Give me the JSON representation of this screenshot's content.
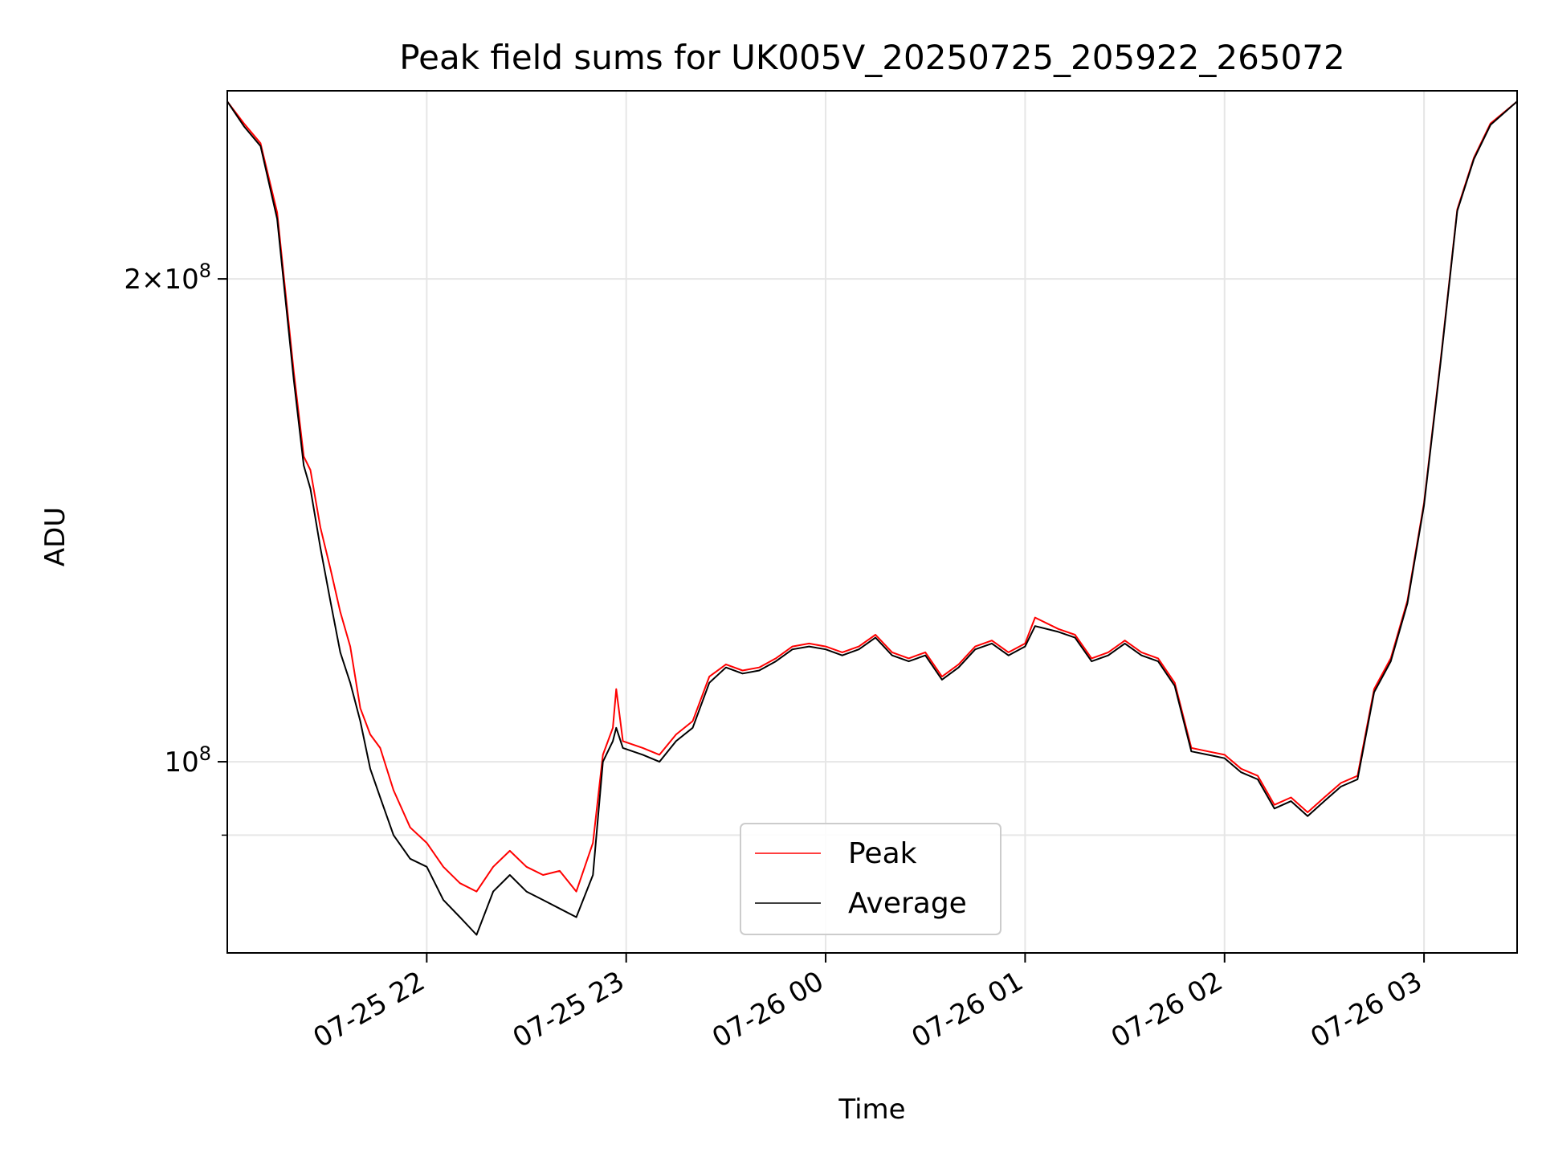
{
  "chart_data": {
    "type": "line",
    "title": "Peak field sums for UK005V_20250725_205922_265072",
    "xlabel": "Time",
    "ylabel": "ADU",
    "y_scale": "log",
    "x_range": [
      "2025-07-25 21:00",
      "2025-07-26 03:28"
    ],
    "ylim": [
      76000000,
      262000000
    ],
    "x_ticks": [
      {
        "value": "2025-07-25 22:00",
        "label": "07-25 22"
      },
      {
        "value": "2025-07-25 23:00",
        "label": "07-25 23"
      },
      {
        "value": "2025-07-26 00:00",
        "label": "07-26 00"
      },
      {
        "value": "2025-07-26 01:00",
        "label": "07-26 01"
      },
      {
        "value": "2025-07-26 02:00",
        "label": "07-26 02"
      },
      {
        "value": "2025-07-26 03:00",
        "label": "07-26 03"
      }
    ],
    "y_major_ticks": [
      {
        "value": 100000000,
        "base": "10",
        "exp": "8",
        "mant": ""
      },
      {
        "value": 200000000,
        "base": "10",
        "exp": "8",
        "mant": "2"
      }
    ],
    "y_minor_ticks": [
      90000000
    ],
    "grid": true,
    "legend_position": "lower center",
    "series": [
      {
        "name": "Peak",
        "color": "#ff0000",
        "points": [
          [
            "2025-07-25 21:00",
            258000000
          ],
          [
            "2025-07-25 21:05",
            250000000
          ],
          [
            "2025-07-25 21:10",
            243000000
          ],
          [
            "2025-07-25 21:15",
            220000000
          ],
          [
            "2025-07-25 21:20",
            175000000
          ],
          [
            "2025-07-25 21:23",
            155000000
          ],
          [
            "2025-07-25 21:25",
            152000000
          ],
          [
            "2025-07-25 21:28",
            140000000
          ],
          [
            "2025-07-25 21:31",
            132000000
          ],
          [
            "2025-07-25 21:34",
            124000000
          ],
          [
            "2025-07-25 21:37",
            118000000
          ],
          [
            "2025-07-25 21:40",
            108000000
          ],
          [
            "2025-07-25 21:43",
            104000000
          ],
          [
            "2025-07-25 21:46",
            102000000
          ],
          [
            "2025-07-25 21:50",
            96000000
          ],
          [
            "2025-07-25 21:55",
            91000000
          ],
          [
            "2025-07-25 22:00",
            89000000
          ],
          [
            "2025-07-25 22:05",
            86000000
          ],
          [
            "2025-07-25 22:10",
            84000000
          ],
          [
            "2025-07-25 22:15",
            83000000
          ],
          [
            "2025-07-25 22:20",
            86000000
          ],
          [
            "2025-07-25 22:25",
            88000000
          ],
          [
            "2025-07-25 22:30",
            86000000
          ],
          [
            "2025-07-25 22:35",
            85000000
          ],
          [
            "2025-07-25 22:40",
            85500000
          ],
          [
            "2025-07-25 22:45",
            83000000
          ],
          [
            "2025-07-25 22:50",
            89000000
          ],
          [
            "2025-07-25 22:53",
            101000000
          ],
          [
            "2025-07-25 22:56",
            105000000
          ],
          [
            "2025-07-25 22:57",
            111000000
          ],
          [
            "2025-07-25 22:59",
            103000000
          ],
          [
            "2025-07-25 23:05",
            102000000
          ],
          [
            "2025-07-25 23:10",
            101000000
          ],
          [
            "2025-07-25 23:15",
            104000000
          ],
          [
            "2025-07-25 23:20",
            106000000
          ],
          [
            "2025-07-25 23:25",
            113000000
          ],
          [
            "2025-07-25 23:30",
            115000000
          ],
          [
            "2025-07-25 23:35",
            114000000
          ],
          [
            "2025-07-25 23:40",
            114500000
          ],
          [
            "2025-07-25 23:45",
            116000000
          ],
          [
            "2025-07-25 23:50",
            118000000
          ],
          [
            "2025-07-25 23:55",
            118500000
          ],
          [
            "2025-07-26 00:00",
            118000000
          ],
          [
            "2025-07-26 00:05",
            117000000
          ],
          [
            "2025-07-26 00:10",
            118000000
          ],
          [
            "2025-07-26 00:15",
            120000000
          ],
          [
            "2025-07-26 00:20",
            117000000
          ],
          [
            "2025-07-26 00:25",
            116000000
          ],
          [
            "2025-07-26 00:30",
            117000000
          ],
          [
            "2025-07-26 00:35",
            113000000
          ],
          [
            "2025-07-26 00:40",
            115000000
          ],
          [
            "2025-07-26 00:45",
            118000000
          ],
          [
            "2025-07-26 00:50",
            119000000
          ],
          [
            "2025-07-26 00:55",
            117000000
          ],
          [
            "2025-07-26 01:00",
            118500000
          ],
          [
            "2025-07-26 01:03",
            123000000
          ],
          [
            "2025-07-26 01:10",
            121000000
          ],
          [
            "2025-07-26 01:15",
            120000000
          ],
          [
            "2025-07-26 01:20",
            116000000
          ],
          [
            "2025-07-26 01:25",
            117000000
          ],
          [
            "2025-07-26 01:30",
            119000000
          ],
          [
            "2025-07-26 01:35",
            117000000
          ],
          [
            "2025-07-26 01:40",
            116000000
          ],
          [
            "2025-07-26 01:45",
            112000000
          ],
          [
            "2025-07-26 01:50",
            102000000
          ],
          [
            "2025-07-26 01:55",
            101500000
          ],
          [
            "2025-07-26 02:00",
            101000000
          ],
          [
            "2025-07-26 02:05",
            99000000
          ],
          [
            "2025-07-26 02:10",
            98000000
          ],
          [
            "2025-07-26 02:15",
            94000000
          ],
          [
            "2025-07-26 02:20",
            95000000
          ],
          [
            "2025-07-26 02:25",
            93000000
          ],
          [
            "2025-07-26 02:30",
            95000000
          ],
          [
            "2025-07-26 02:35",
            97000000
          ],
          [
            "2025-07-26 02:40",
            98000000
          ],
          [
            "2025-07-26 02:45",
            111000000
          ],
          [
            "2025-07-26 02:50",
            116000000
          ],
          [
            "2025-07-26 02:55",
            126000000
          ],
          [
            "2025-07-26 03:00",
            145000000
          ],
          [
            "2025-07-26 03:05",
            178000000
          ],
          [
            "2025-07-26 03:10",
            221000000
          ],
          [
            "2025-07-26 03:15",
            238000000
          ],
          [
            "2025-07-26 03:20",
            250000000
          ],
          [
            "2025-07-26 03:28",
            258000000
          ]
        ]
      },
      {
        "name": "Average",
        "color": "#000000",
        "points": [
          [
            "2025-07-25 21:00",
            258000000
          ],
          [
            "2025-07-25 21:05",
            249000000
          ],
          [
            "2025-07-25 21:10",
            242000000
          ],
          [
            "2025-07-25 21:15",
            218000000
          ],
          [
            "2025-07-25 21:20",
            173000000
          ],
          [
            "2025-07-25 21:23",
            153000000
          ],
          [
            "2025-07-25 21:25",
            148000000
          ],
          [
            "2025-07-25 21:28",
            136000000
          ],
          [
            "2025-07-25 21:31",
            126000000
          ],
          [
            "2025-07-25 21:34",
            117000000
          ],
          [
            "2025-07-25 21:37",
            112000000
          ],
          [
            "2025-07-25 21:40",
            106000000
          ],
          [
            "2025-07-25 21:43",
            99000000
          ],
          [
            "2025-07-25 21:46",
            95000000
          ],
          [
            "2025-07-25 21:50",
            90000000
          ],
          [
            "2025-07-25 21:55",
            87000000
          ],
          [
            "2025-07-25 22:00",
            86000000
          ],
          [
            "2025-07-25 22:05",
            82000000
          ],
          [
            "2025-07-25 22:10",
            80000000
          ],
          [
            "2025-07-25 22:15",
            78000000
          ],
          [
            "2025-07-25 22:20",
            83000000
          ],
          [
            "2025-07-25 22:25",
            85000000
          ],
          [
            "2025-07-25 22:30",
            83000000
          ],
          [
            "2025-07-25 22:35",
            82000000
          ],
          [
            "2025-07-25 22:40",
            81000000
          ],
          [
            "2025-07-25 22:45",
            80000000
          ],
          [
            "2025-07-25 22:50",
            85000000
          ],
          [
            "2025-07-25 22:53",
            100000000
          ],
          [
            "2025-07-25 22:56",
            103000000
          ],
          [
            "2025-07-25 22:57",
            105000000
          ],
          [
            "2025-07-25 22:59",
            102000000
          ],
          [
            "2025-07-25 23:05",
            101000000
          ],
          [
            "2025-07-25 23:10",
            100000000
          ],
          [
            "2025-07-25 23:15",
            103000000
          ],
          [
            "2025-07-25 23:20",
            105000000
          ],
          [
            "2025-07-25 23:25",
            112000000
          ],
          [
            "2025-07-25 23:30",
            114500000
          ],
          [
            "2025-07-25 23:35",
            113500000
          ],
          [
            "2025-07-25 23:40",
            114000000
          ],
          [
            "2025-07-25 23:45",
            115500000
          ],
          [
            "2025-07-25 23:50",
            117500000
          ],
          [
            "2025-07-25 23:55",
            118000000
          ],
          [
            "2025-07-26 00:00",
            117500000
          ],
          [
            "2025-07-26 00:05",
            116500000
          ],
          [
            "2025-07-26 00:10",
            117500000
          ],
          [
            "2025-07-26 00:15",
            119500000
          ],
          [
            "2025-07-26 00:20",
            116500000
          ],
          [
            "2025-07-26 00:25",
            115500000
          ],
          [
            "2025-07-26 00:30",
            116500000
          ],
          [
            "2025-07-26 00:35",
            112500000
          ],
          [
            "2025-07-26 00:40",
            114500000
          ],
          [
            "2025-07-26 00:45",
            117500000
          ],
          [
            "2025-07-26 00:50",
            118500000
          ],
          [
            "2025-07-26 00:55",
            116500000
          ],
          [
            "2025-07-26 01:00",
            118000000
          ],
          [
            "2025-07-26 01:03",
            121500000
          ],
          [
            "2025-07-26 01:10",
            120500000
          ],
          [
            "2025-07-26 01:15",
            119500000
          ],
          [
            "2025-07-26 01:20",
            115500000
          ],
          [
            "2025-07-26 01:25",
            116500000
          ],
          [
            "2025-07-26 01:30",
            118500000
          ],
          [
            "2025-07-26 01:35",
            116500000
          ],
          [
            "2025-07-26 01:40",
            115500000
          ],
          [
            "2025-07-26 01:45",
            111500000
          ],
          [
            "2025-07-26 01:50",
            101500000
          ],
          [
            "2025-07-26 01:55",
            101000000
          ],
          [
            "2025-07-26 02:00",
            100500000
          ],
          [
            "2025-07-26 02:05",
            98500000
          ],
          [
            "2025-07-26 02:10",
            97500000
          ],
          [
            "2025-07-26 02:15",
            93500000
          ],
          [
            "2025-07-26 02:20",
            94500000
          ],
          [
            "2025-07-26 02:25",
            92500000
          ],
          [
            "2025-07-26 02:30",
            94500000
          ],
          [
            "2025-07-26 02:35",
            96500000
          ],
          [
            "2025-07-26 02:40",
            97500000
          ],
          [
            "2025-07-26 02:45",
            110500000
          ],
          [
            "2025-07-26 02:50",
            115500000
          ],
          [
            "2025-07-26 02:55",
            125500000
          ],
          [
            "2025-07-26 03:00",
            144500000
          ],
          [
            "2025-07-26 03:05",
            177500000
          ],
          [
            "2025-07-26 03:10",
            220500000
          ],
          [
            "2025-07-26 03:15",
            237500000
          ],
          [
            "2025-07-26 03:20",
            249500000
          ],
          [
            "2025-07-26 03:28",
            258000000
          ]
        ]
      }
    ]
  }
}
